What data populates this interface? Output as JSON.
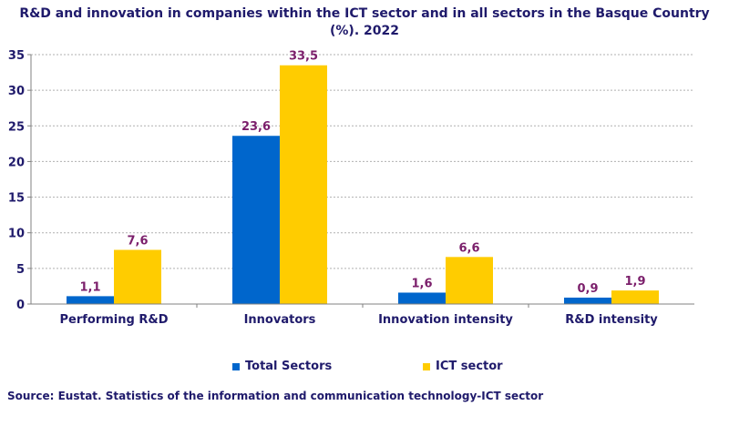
{
  "chart_data": {
    "type": "bar",
    "title": "R&D and innovation in companies within the ICT sector and in all sectors in the Basque Country (%). 2022",
    "categories": [
      "Performing R&D",
      "Innovators",
      "Innovation intensity",
      "R&D intensity"
    ],
    "series": [
      {
        "name": "Total Sectors",
        "values": [
          1.1,
          23.6,
          1.6,
          0.9
        ],
        "labels": [
          "1,1",
          "23,6",
          "1,6",
          "0,9"
        ],
        "color": "#0066cc"
      },
      {
        "name": "ICT sector",
        "values": [
          7.6,
          33.5,
          6.6,
          1.9
        ],
        "labels": [
          "7,6",
          "33,5",
          "6,6",
          "1,9"
        ],
        "color": "#ffcc00"
      }
    ],
    "ylim": [
      0,
      35
    ],
    "yticks": [
      0,
      5,
      10,
      15,
      20,
      25,
      30,
      35
    ],
    "grid": true,
    "legend_position": "bottom",
    "label_color": "#7b1f6b",
    "text_color": "#1f1a6b"
  },
  "source": "Source: Eustat. Statistics of the information and communication technology-ICT sector"
}
